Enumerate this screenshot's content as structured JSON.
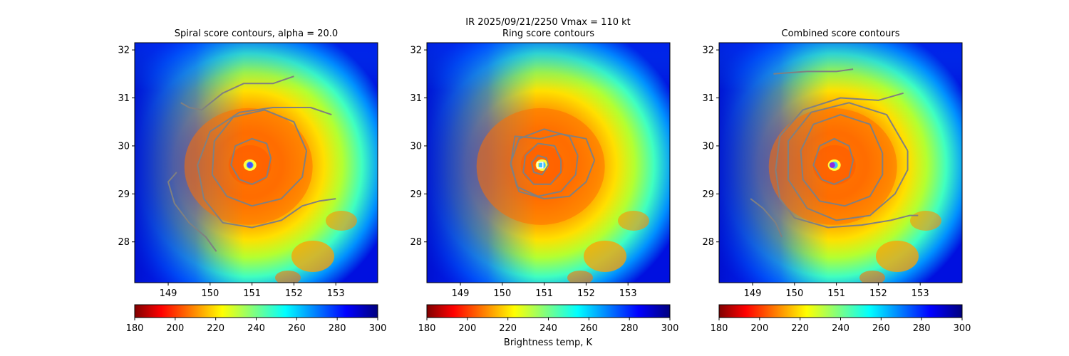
{
  "suptitle": "IR  2025/09/21/2250    Vmax = 110 kt",
  "colorbar_label": "Brightness temp, K",
  "chart_data": [
    {
      "type": "heatmap",
      "title": "Spiral score contours, alpha = 20.0",
      "xlim": [
        148.2,
        154.0
      ],
      "ylim": [
        27.15,
        32.15
      ],
      "xticks": [
        "149",
        "150",
        "151",
        "152",
        "153"
      ],
      "yticks": [
        "28",
        "29",
        "30",
        "31",
        "32"
      ],
      "colorbar": {
        "range": [
          180,
          300
        ],
        "ticks": [
          "180",
          "200",
          "220",
          "240",
          "260",
          "280",
          "300"
        ],
        "colormap": "jet_r"
      },
      "center": {
        "lon": 150.95,
        "lat": 29.6
      },
      "marker": {
        "lon": 150.95,
        "lat": 29.6,
        "style": "dot",
        "color": "#4a4aff"
      },
      "contour_color": "#808080",
      "contours": [
        [
          [
            151.45,
            29.75
          ],
          [
            151.35,
            30.05
          ],
          [
            151.0,
            30.15
          ],
          [
            150.6,
            30.0
          ],
          [
            150.5,
            29.6
          ],
          [
            150.7,
            29.3
          ],
          [
            151.0,
            29.2
          ],
          [
            151.35,
            29.35
          ],
          [
            151.45,
            29.75
          ]
        ],
        [
          [
            152.3,
            29.9
          ],
          [
            152.0,
            30.5
          ],
          [
            151.3,
            30.75
          ],
          [
            150.55,
            30.6
          ],
          [
            150.1,
            30.1
          ],
          [
            150.05,
            29.4
          ],
          [
            150.4,
            28.95
          ],
          [
            151.0,
            28.75
          ],
          [
            151.7,
            28.9
          ],
          [
            152.2,
            29.35
          ],
          [
            152.3,
            29.9
          ]
        ],
        [
          [
            152.9,
            30.65
          ],
          [
            152.4,
            30.8
          ],
          [
            151.5,
            30.8
          ],
          [
            150.7,
            30.7
          ],
          [
            150.0,
            30.3
          ],
          [
            149.7,
            29.6
          ],
          [
            149.85,
            28.9
          ],
          [
            150.3,
            28.4
          ],
          [
            151.0,
            28.3
          ],
          [
            151.7,
            28.45
          ],
          [
            152.2,
            28.75
          ],
          [
            152.6,
            28.85
          ],
          [
            153.0,
            28.9
          ]
        ],
        [
          [
            152.0,
            31.45
          ],
          [
            151.5,
            31.3
          ],
          [
            150.8,
            31.3
          ],
          [
            150.3,
            31.1
          ],
          [
            149.8,
            30.75
          ],
          [
            149.5,
            30.8
          ],
          [
            149.3,
            30.9
          ]
        ],
        [
          [
            149.2,
            29.45
          ],
          [
            149.0,
            29.25
          ],
          [
            149.15,
            28.8
          ],
          [
            149.5,
            28.4
          ],
          [
            149.9,
            28.1
          ],
          [
            150.15,
            27.8
          ]
        ]
      ]
    },
    {
      "type": "heatmap",
      "title": "Ring score contours",
      "xlim": [
        148.2,
        154.0
      ],
      "ylim": [
        27.15,
        32.15
      ],
      "xticks": [
        "149",
        "150",
        "151",
        "152",
        "153"
      ],
      "yticks": [
        "28",
        "29",
        "30",
        "31",
        "32"
      ],
      "colorbar": {
        "range": [
          180,
          300
        ],
        "ticks": [
          "180",
          "200",
          "220",
          "240",
          "260",
          "280",
          "300"
        ],
        "colormap": "jet_r"
      },
      "center": {
        "lon": 150.95,
        "lat": 29.6
      },
      "marker": {
        "lon": 150.9,
        "lat": 29.6,
        "style": "square",
        "color": "#ffffff"
      },
      "contour_color": "#808080",
      "contours": [
        [
          [
            151.1,
            29.6
          ],
          [
            151.05,
            29.75
          ],
          [
            150.85,
            29.8
          ],
          [
            150.7,
            29.65
          ],
          [
            150.75,
            29.45
          ],
          [
            150.95,
            29.4
          ],
          [
            151.1,
            29.6
          ]
        ],
        [
          [
            151.4,
            29.7
          ],
          [
            151.25,
            30.0
          ],
          [
            150.85,
            30.05
          ],
          [
            150.55,
            29.8
          ],
          [
            150.5,
            29.45
          ],
          [
            150.75,
            29.2
          ],
          [
            151.15,
            29.2
          ],
          [
            151.4,
            29.45
          ],
          [
            151.4,
            29.7
          ]
        ],
        [
          [
            151.8,
            29.8
          ],
          [
            151.6,
            30.2
          ],
          [
            151.0,
            30.35
          ],
          [
            150.4,
            30.15
          ],
          [
            150.2,
            29.65
          ],
          [
            150.35,
            29.15
          ],
          [
            150.85,
            28.95
          ],
          [
            151.4,
            29.05
          ],
          [
            151.75,
            29.4
          ],
          [
            151.8,
            29.8
          ]
        ],
        [
          [
            152.2,
            29.7
          ],
          [
            152.0,
            30.15
          ],
          [
            151.4,
            30.25
          ],
          [
            150.9,
            30.15
          ],
          [
            150.3,
            30.2
          ],
          [
            150.2,
            29.6
          ],
          [
            150.4,
            29.05
          ],
          [
            151.0,
            28.9
          ],
          [
            151.6,
            28.95
          ],
          [
            152.0,
            29.25
          ],
          [
            152.2,
            29.7
          ]
        ]
      ]
    },
    {
      "type": "heatmap",
      "title": "Combined score contours",
      "xlim": [
        148.2,
        154.0
      ],
      "ylim": [
        27.15,
        32.15
      ],
      "xticks": [
        "149",
        "150",
        "151",
        "152",
        "153"
      ],
      "yticks": [
        "28",
        "29",
        "30",
        "31",
        "32"
      ],
      "colorbar": {
        "range": [
          180,
          300
        ],
        "ticks": [
          "180",
          "200",
          "220",
          "240",
          "260",
          "280",
          "300"
        ],
        "colormap": "jet_r"
      },
      "center": {
        "lon": 150.95,
        "lat": 29.6
      },
      "marker": {
        "lon": 150.9,
        "lat": 29.6,
        "style": "dot",
        "color": "#8a2be2"
      },
      "contour_color": "#808080",
      "contours": [
        [
          [
            151.4,
            29.7
          ],
          [
            151.3,
            30.0
          ],
          [
            150.95,
            30.15
          ],
          [
            150.6,
            30.0
          ],
          [
            150.45,
            29.6
          ],
          [
            150.65,
            29.3
          ],
          [
            150.95,
            29.2
          ],
          [
            151.3,
            29.35
          ],
          [
            151.4,
            29.7
          ]
        ],
        [
          [
            152.1,
            29.85
          ],
          [
            151.8,
            30.45
          ],
          [
            151.1,
            30.65
          ],
          [
            150.45,
            30.45
          ],
          [
            150.15,
            29.9
          ],
          [
            150.2,
            29.3
          ],
          [
            150.6,
            28.85
          ],
          [
            151.2,
            28.75
          ],
          [
            151.8,
            28.95
          ],
          [
            152.1,
            29.4
          ],
          [
            152.1,
            29.85
          ]
        ],
        [
          [
            152.7,
            29.9
          ],
          [
            152.2,
            30.65
          ],
          [
            151.3,
            30.9
          ],
          [
            150.4,
            30.7
          ],
          [
            149.85,
            30.1
          ],
          [
            149.85,
            29.3
          ],
          [
            150.3,
            28.7
          ],
          [
            151.0,
            28.45
          ],
          [
            151.8,
            28.55
          ],
          [
            152.4,
            29.0
          ],
          [
            152.7,
            29.5
          ],
          [
            152.7,
            29.9
          ]
        ],
        [
          [
            152.6,
            31.1
          ],
          [
            152.0,
            30.95
          ],
          [
            151.1,
            31.0
          ],
          [
            150.2,
            30.75
          ],
          [
            149.65,
            30.2
          ],
          [
            149.55,
            29.5
          ],
          [
            149.65,
            28.9
          ],
          [
            150.0,
            28.5
          ],
          [
            150.8,
            28.3
          ],
          [
            151.6,
            28.35
          ],
          [
            152.3,
            28.45
          ],
          [
            152.75,
            28.55
          ],
          [
            152.95,
            28.55
          ]
        ],
        [
          [
            149.5,
            31.5
          ],
          [
            150.3,
            31.55
          ],
          [
            151.0,
            31.55
          ],
          [
            151.4,
            31.6
          ]
        ],
        [
          [
            148.95,
            28.9
          ],
          [
            149.25,
            28.7
          ],
          [
            149.55,
            28.4
          ],
          [
            149.7,
            28.1
          ]
        ]
      ]
    }
  ]
}
